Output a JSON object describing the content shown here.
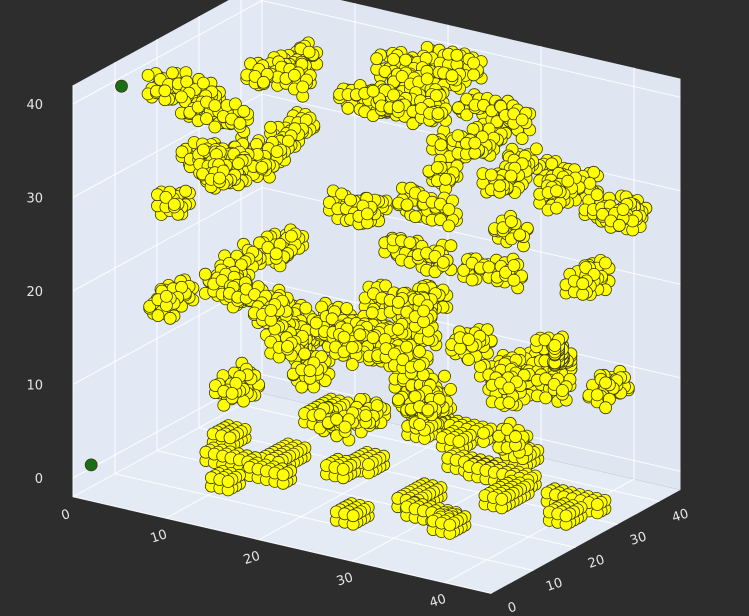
{
  "chart_data": {
    "type": "scatter3d",
    "title": "",
    "xlabel": "",
    "ylabel": "",
    "zlabel": "",
    "xlim": [
      0,
      45
    ],
    "ylim": [
      0,
      45
    ],
    "zlim": [
      -2,
      42
    ],
    "x_ticks": [
      "0",
      "10",
      "20",
      "30",
      "40"
    ],
    "y_ticks": [
      "0",
      "10",
      "20",
      "30",
      "40"
    ],
    "z_ticks": [
      "0",
      "10",
      "20",
      "30",
      "40"
    ],
    "marker_colors": {
      "primary": "#ffff00",
      "secondary": "#1a6e1a",
      "edge": "#3a3a00"
    },
    "pane_color": "#e5ebf5",
    "grid": true,
    "layers_z": [
      0,
      10,
      20,
      30,
      40
    ],
    "series": [
      {
        "color": "#ffff00",
        "description_count_estimate": 1500
      },
      {
        "color": "#1a6e1a",
        "description_count_estimate": 3
      }
    ]
  }
}
